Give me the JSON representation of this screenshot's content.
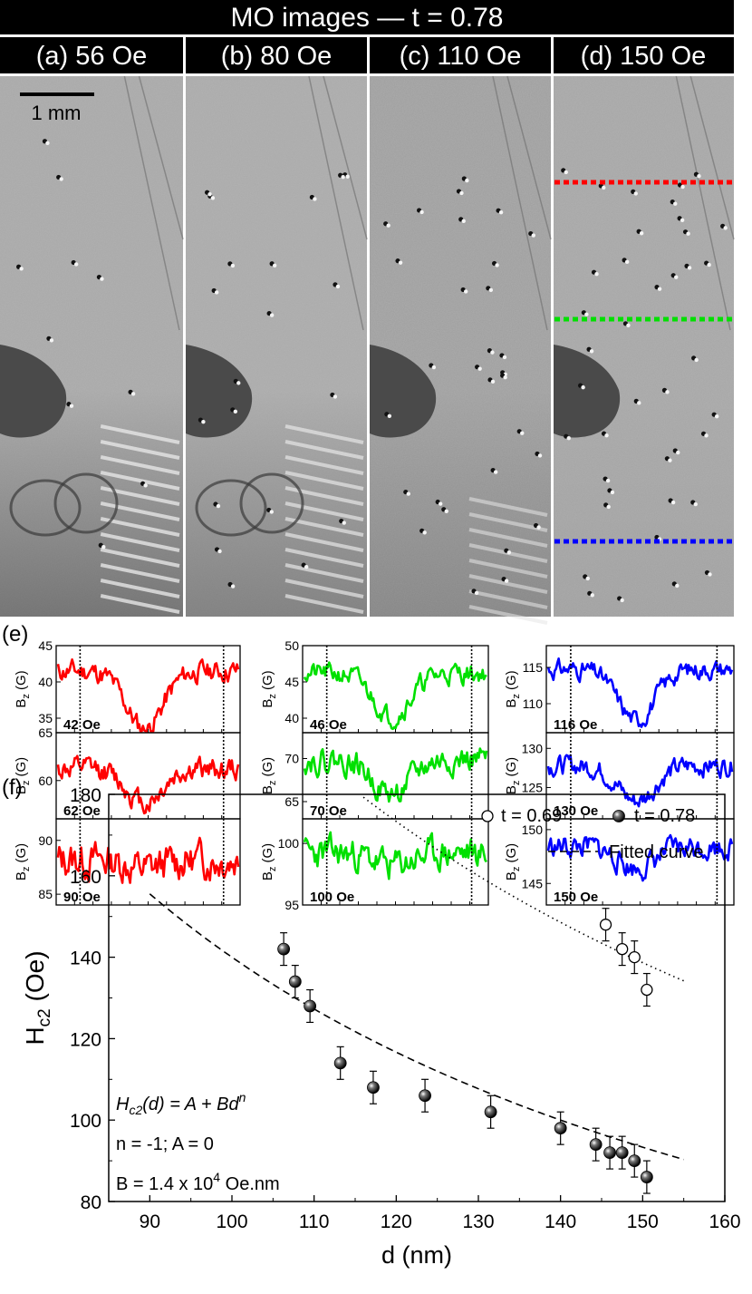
{
  "header": {
    "title": "MO images — t = 0.78",
    "panels": [
      {
        "label": "(a) 56 Oe"
      },
      {
        "label": "(b) 80 Oe"
      },
      {
        "label": "(c) 110 Oe"
      },
      {
        "label": "(d) 150 Oe"
      }
    ]
  },
  "scalebar": {
    "label": "1 mm"
  },
  "profile_lines": {
    "colors": [
      "#ff0000",
      "#00e000",
      "#0000ff"
    ]
  },
  "panel_e": {
    "label": "(e)",
    "y_label_main": "B",
    "y_label_sub": "z",
    "y_label_unit": "(G)",
    "columns": [
      {
        "color": "#ff0000",
        "rows": [
          {
            "field_label": "42 Oe",
            "ylim": [
              33,
              45
            ],
            "yticks": [
              "45",
              "40",
              "35"
            ],
            "base": 41.5,
            "amp": 1.5,
            "dip_depth": 8.0,
            "seed": 11
          },
          {
            "field_label": "62 Oe",
            "ylim": [
              56,
              65
            ],
            "yticks": [
              "65",
              "60"
            ],
            "base": 61.2,
            "amp": 1.2,
            "dip_depth": 3.5,
            "seed": 12
          },
          {
            "field_label": "90 Oe",
            "ylim": [
              84,
              92
            ],
            "yticks": [
              "90",
              "85"
            ],
            "base": 88.2,
            "amp": 1.7,
            "dip_depth": 0.8,
            "seed": 13
          }
        ]
      },
      {
        "color": "#00e000",
        "rows": [
          {
            "field_label": "46 Oe",
            "ylim": [
              38,
              50
            ],
            "yticks": [
              "50",
              "45",
              "40"
            ],
            "base": 46.2,
            "amp": 1.4,
            "dip_depth": 6.0,
            "seed": 21
          },
          {
            "field_label": "70 Oe",
            "ylim": [
              63,
              73
            ],
            "yticks": [
              "70",
              "65"
            ],
            "base": 69.8,
            "amp": 1.5,
            "dip_depth": 4.0,
            "seed": 22
          },
          {
            "field_label": "100 Oe",
            "ylim": [
              95,
              102
            ],
            "yticks": [
              "100",
              "95"
            ],
            "base": 99.2,
            "amp": 1.3,
            "dip_depth": 1.0,
            "seed": 23
          }
        ]
      },
      {
        "color": "#0000ff",
        "rows": [
          {
            "field_label": "116 Oe",
            "ylim": [
              106,
              118
            ],
            "yticks": [
              "115",
              "110"
            ],
            "base": 114.8,
            "amp": 1.3,
            "dip_depth": 7.0,
            "seed": 31
          },
          {
            "field_label": "130 Oe",
            "ylim": [
              121,
              132
            ],
            "yticks": [
              "130",
              "125"
            ],
            "base": 127.8,
            "amp": 1.3,
            "dip_depth": 4.5,
            "seed": 32
          },
          {
            "field_label": "150 Oe",
            "ylim": [
              143,
              151
            ],
            "yticks": [
              "150",
              "145"
            ],
            "base": 148.4,
            "amp": 1.1,
            "dip_depth": 2.0,
            "seed": 33
          }
        ]
      }
    ]
  },
  "chart_data": {
    "type": "scatter",
    "panel_label": "(f)",
    "xlabel": "d (nm)",
    "ylabel_main": "H",
    "ylabel_sub": "c2",
    "ylabel_unit": "(Oe)",
    "xlim": [
      85,
      160
    ],
    "ylim": [
      80,
      180
    ],
    "xticks": [
      90,
      100,
      110,
      120,
      130,
      140,
      150,
      160
    ],
    "yticks": [
      80,
      100,
      120,
      140,
      160,
      180
    ],
    "series": [
      {
        "name": "t = 0.69",
        "marker": "open-circle",
        "x": [
          145.5,
          147.5,
          149.0,
          150.5
        ],
        "y": [
          148,
          142,
          140,
          132
        ],
        "err": [
          4,
          4,
          4,
          4
        ]
      },
      {
        "name": "t = 0.78",
        "marker": "filled-sphere",
        "x": [
          106.3,
          107.7,
          109.5,
          113.2,
          117.2,
          123.5,
          131.5,
          140.0,
          144.3,
          146.0,
          147.5,
          149.0,
          150.5
        ],
        "y": [
          142,
          134,
          128,
          114,
          108,
          106,
          102,
          98,
          94,
          92,
          92,
          90,
          86
        ],
        "err": [
          4,
          4,
          4,
          4,
          4,
          4,
          4,
          4,
          4,
          4,
          4,
          4,
          4
        ]
      }
    ],
    "fits": [
      {
        "name": "Fitted curve",
        "style": "dashed",
        "B": 14000,
        "n": -1,
        "A": 0,
        "x_range": [
          90,
          155
        ]
      },
      {
        "style": "dotted",
        "B": 20800,
        "n": -1,
        "A": 0,
        "x_range": [
          115,
          155
        ]
      }
    ],
    "legend": {
      "position": "top-right",
      "fit_label": "Fitted curve"
    },
    "annotations": {
      "eq_main": "H",
      "eq_sub": "c2",
      "eq_rest": "(d) = A + Bd",
      "eq_sup": "n",
      "line2": "n = -1; A = 0",
      "line3": "B = 1.4 x 10",
      "line3_sup": "4",
      "line3_unit": " Oe.nm"
    }
  }
}
